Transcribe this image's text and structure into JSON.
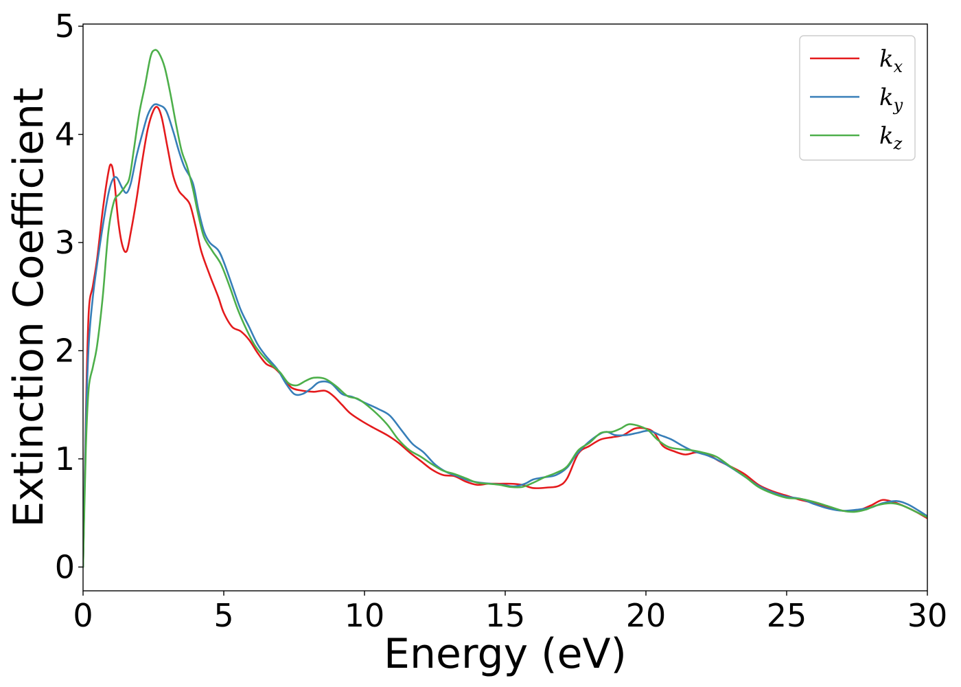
{
  "chart_data": {
    "type": "line",
    "title": "",
    "xlabel": "Energy (eV)",
    "ylabel": "Extinction Coefficient",
    "xlim": [
      0,
      30
    ],
    "ylim": [
      -0.22,
      5.02
    ],
    "xticks": [
      0,
      5,
      10,
      15,
      20,
      25,
      30
    ],
    "yticks": [
      0,
      1,
      2,
      3,
      4,
      5
    ],
    "grid": false,
    "legend_position": "top-right",
    "series": [
      {
        "name": "k",
        "subscript": "x",
        "color": "#e41a1c",
        "points": [
          [
            0,
            0
          ],
          [
            0.1,
            1.4
          ],
          [
            0.2,
            2.35
          ],
          [
            0.35,
            2.6
          ],
          [
            0.5,
            2.85
          ],
          [
            0.7,
            3.3
          ],
          [
            0.9,
            3.65
          ],
          [
            1.0,
            3.72
          ],
          [
            1.1,
            3.6
          ],
          [
            1.25,
            3.2
          ],
          [
            1.4,
            2.97
          ],
          [
            1.55,
            2.92
          ],
          [
            1.7,
            3.1
          ],
          [
            1.9,
            3.4
          ],
          [
            2.1,
            3.75
          ],
          [
            2.3,
            4.05
          ],
          [
            2.5,
            4.22
          ],
          [
            2.65,
            4.25
          ],
          [
            2.8,
            4.15
          ],
          [
            3.0,
            3.88
          ],
          [
            3.2,
            3.62
          ],
          [
            3.4,
            3.48
          ],
          [
            3.6,
            3.42
          ],
          [
            3.8,
            3.35
          ],
          [
            4.0,
            3.15
          ],
          [
            4.2,
            2.92
          ],
          [
            4.5,
            2.7
          ],
          [
            4.8,
            2.5
          ],
          [
            5.0,
            2.35
          ],
          [
            5.3,
            2.22
          ],
          [
            5.6,
            2.18
          ],
          [
            5.9,
            2.1
          ],
          [
            6.2,
            1.98
          ],
          [
            6.5,
            1.88
          ],
          [
            6.8,
            1.84
          ],
          [
            7.1,
            1.76
          ],
          [
            7.4,
            1.66
          ],
          [
            7.8,
            1.63
          ],
          [
            8.2,
            1.62
          ],
          [
            8.6,
            1.63
          ],
          [
            8.9,
            1.58
          ],
          [
            9.2,
            1.5
          ],
          [
            9.5,
            1.42
          ],
          [
            9.9,
            1.35
          ],
          [
            10.3,
            1.29
          ],
          [
            10.8,
            1.22
          ],
          [
            11.2,
            1.15
          ],
          [
            11.6,
            1.06
          ],
          [
            12.0,
            0.98
          ],
          [
            12.4,
            0.9
          ],
          [
            12.8,
            0.85
          ],
          [
            13.2,
            0.84
          ],
          [
            13.6,
            0.79
          ],
          [
            14.0,
            0.76
          ],
          [
            14.4,
            0.77
          ],
          [
            14.8,
            0.77
          ],
          [
            15.2,
            0.77
          ],
          [
            15.6,
            0.76
          ],
          [
            16.0,
            0.73
          ],
          [
            16.5,
            0.735
          ],
          [
            16.9,
            0.75
          ],
          [
            17.2,
            0.82
          ],
          [
            17.6,
            1.05
          ],
          [
            18.0,
            1.12
          ],
          [
            18.4,
            1.18
          ],
          [
            18.8,
            1.2
          ],
          [
            19.2,
            1.22
          ],
          [
            19.6,
            1.28
          ],
          [
            20.0,
            1.28
          ],
          [
            20.3,
            1.24
          ],
          [
            20.6,
            1.12
          ],
          [
            21.0,
            1.07
          ],
          [
            21.4,
            1.04
          ],
          [
            21.8,
            1.06
          ],
          [
            22.2,
            1.04
          ],
          [
            22.6,
            0.98
          ],
          [
            23.0,
            0.93
          ],
          [
            23.5,
            0.86
          ],
          [
            24.0,
            0.76
          ],
          [
            24.5,
            0.7
          ],
          [
            25.0,
            0.66
          ],
          [
            25.5,
            0.62
          ],
          [
            26.0,
            0.59
          ],
          [
            26.5,
            0.55
          ],
          [
            27.0,
            0.52
          ],
          [
            27.5,
            0.52
          ],
          [
            28.0,
            0.57
          ],
          [
            28.4,
            0.62
          ],
          [
            28.8,
            0.6
          ],
          [
            29.2,
            0.56
          ],
          [
            29.6,
            0.51
          ],
          [
            30.0,
            0.45
          ]
        ]
      },
      {
        "name": "k",
        "subscript": "y",
        "color": "#377eb8",
        "points": [
          [
            0,
            0
          ],
          [
            0.1,
            1.3
          ],
          [
            0.2,
            2.05
          ],
          [
            0.35,
            2.5
          ],
          [
            0.5,
            2.8
          ],
          [
            0.7,
            3.15
          ],
          [
            0.9,
            3.45
          ],
          [
            1.05,
            3.58
          ],
          [
            1.2,
            3.6
          ],
          [
            1.4,
            3.5
          ],
          [
            1.55,
            3.46
          ],
          [
            1.7,
            3.55
          ],
          [
            1.9,
            3.8
          ],
          [
            2.1,
            4.0
          ],
          [
            2.3,
            4.18
          ],
          [
            2.5,
            4.27
          ],
          [
            2.7,
            4.27
          ],
          [
            2.95,
            4.22
          ],
          [
            3.2,
            4.03
          ],
          [
            3.4,
            3.85
          ],
          [
            3.6,
            3.7
          ],
          [
            3.9,
            3.55
          ],
          [
            4.1,
            3.3
          ],
          [
            4.3,
            3.1
          ],
          [
            4.5,
            3.0
          ],
          [
            4.8,
            2.93
          ],
          [
            5.0,
            2.82
          ],
          [
            5.3,
            2.6
          ],
          [
            5.6,
            2.38
          ],
          [
            5.9,
            2.22
          ],
          [
            6.2,
            2.06
          ],
          [
            6.5,
            1.95
          ],
          [
            6.9,
            1.83
          ],
          [
            7.2,
            1.7
          ],
          [
            7.5,
            1.6
          ],
          [
            7.8,
            1.6
          ],
          [
            8.1,
            1.65
          ],
          [
            8.4,
            1.71
          ],
          [
            8.8,
            1.7
          ],
          [
            9.2,
            1.6
          ],
          [
            9.6,
            1.57
          ],
          [
            10.0,
            1.52
          ],
          [
            10.5,
            1.46
          ],
          [
            10.9,
            1.4
          ],
          [
            11.3,
            1.27
          ],
          [
            11.7,
            1.14
          ],
          [
            12.1,
            1.06
          ],
          [
            12.5,
            0.95
          ],
          [
            12.9,
            0.88
          ],
          [
            13.3,
            0.84
          ],
          [
            13.7,
            0.8
          ],
          [
            14.1,
            0.78
          ],
          [
            14.5,
            0.77
          ],
          [
            14.9,
            0.76
          ],
          [
            15.3,
            0.745
          ],
          [
            15.7,
            0.77
          ],
          [
            16.0,
            0.81
          ],
          [
            16.4,
            0.83
          ],
          [
            16.8,
            0.85
          ],
          [
            17.2,
            0.92
          ],
          [
            17.5,
            1.03
          ],
          [
            17.9,
            1.14
          ],
          [
            18.3,
            1.22
          ],
          [
            18.6,
            1.25
          ],
          [
            18.9,
            1.22
          ],
          [
            19.3,
            1.22
          ],
          [
            19.7,
            1.24
          ],
          [
            20.1,
            1.26
          ],
          [
            20.5,
            1.22
          ],
          [
            20.9,
            1.18
          ],
          [
            21.3,
            1.12
          ],
          [
            21.7,
            1.07
          ],
          [
            22.2,
            1.03
          ],
          [
            22.7,
            0.97
          ],
          [
            23.2,
            0.89
          ],
          [
            23.6,
            0.82
          ],
          [
            24.0,
            0.75
          ],
          [
            24.5,
            0.69
          ],
          [
            25.0,
            0.65
          ],
          [
            25.5,
            0.63
          ],
          [
            26.0,
            0.58
          ],
          [
            26.5,
            0.54
          ],
          [
            27.0,
            0.52
          ],
          [
            27.5,
            0.53
          ],
          [
            28.0,
            0.55
          ],
          [
            28.4,
            0.59
          ],
          [
            28.9,
            0.61
          ],
          [
            29.3,
            0.58
          ],
          [
            29.7,
            0.52
          ],
          [
            30.0,
            0.47
          ]
        ]
      },
      {
        "name": "k",
        "subscript": "z",
        "color": "#4daf4a",
        "points": [
          [
            0,
            0
          ],
          [
            0.1,
            1.1
          ],
          [
            0.2,
            1.65
          ],
          [
            0.35,
            1.85
          ],
          [
            0.5,
            2.05
          ],
          [
            0.7,
            2.5
          ],
          [
            0.9,
            3.1
          ],
          [
            1.1,
            3.38
          ],
          [
            1.3,
            3.45
          ],
          [
            1.5,
            3.52
          ],
          [
            1.65,
            3.6
          ],
          [
            1.8,
            3.85
          ],
          [
            2.0,
            4.2
          ],
          [
            2.2,
            4.45
          ],
          [
            2.4,
            4.72
          ],
          [
            2.55,
            4.78
          ],
          [
            2.7,
            4.75
          ],
          [
            2.9,
            4.62
          ],
          [
            3.1,
            4.38
          ],
          [
            3.3,
            4.1
          ],
          [
            3.5,
            3.85
          ],
          [
            3.7,
            3.7
          ],
          [
            3.9,
            3.5
          ],
          [
            4.1,
            3.25
          ],
          [
            4.3,
            3.05
          ],
          [
            4.6,
            2.92
          ],
          [
            4.9,
            2.8
          ],
          [
            5.2,
            2.6
          ],
          [
            5.5,
            2.38
          ],
          [
            5.8,
            2.2
          ],
          [
            6.1,
            2.05
          ],
          [
            6.4,
            1.95
          ],
          [
            6.7,
            1.87
          ],
          [
            7.0,
            1.8
          ],
          [
            7.3,
            1.7
          ],
          [
            7.6,
            1.68
          ],
          [
            7.9,
            1.72
          ],
          [
            8.2,
            1.75
          ],
          [
            8.6,
            1.74
          ],
          [
            9.0,
            1.67
          ],
          [
            9.4,
            1.58
          ],
          [
            9.8,
            1.55
          ],
          [
            10.3,
            1.45
          ],
          [
            10.8,
            1.32
          ],
          [
            11.2,
            1.18
          ],
          [
            11.6,
            1.08
          ],
          [
            12.0,
            1.02
          ],
          [
            12.4,
            0.95
          ],
          [
            12.8,
            0.89
          ],
          [
            13.2,
            0.86
          ],
          [
            13.6,
            0.82
          ],
          [
            14.0,
            0.78
          ],
          [
            14.4,
            0.77
          ],
          [
            14.8,
            0.76
          ],
          [
            15.2,
            0.74
          ],
          [
            15.6,
            0.74
          ],
          [
            16.0,
            0.78
          ],
          [
            16.4,
            0.83
          ],
          [
            16.8,
            0.87
          ],
          [
            17.2,
            0.93
          ],
          [
            17.6,
            1.08
          ],
          [
            18.0,
            1.15
          ],
          [
            18.4,
            1.24
          ],
          [
            18.8,
            1.25
          ],
          [
            19.1,
            1.28
          ],
          [
            19.4,
            1.32
          ],
          [
            19.8,
            1.3
          ],
          [
            20.1,
            1.26
          ],
          [
            20.4,
            1.18
          ],
          [
            20.8,
            1.11
          ],
          [
            21.2,
            1.09
          ],
          [
            21.6,
            1.08
          ],
          [
            22.0,
            1.06
          ],
          [
            22.5,
            1.02
          ],
          [
            23.0,
            0.93
          ],
          [
            23.5,
            0.84
          ],
          [
            24.0,
            0.74
          ],
          [
            24.5,
            0.68
          ],
          [
            25.0,
            0.64
          ],
          [
            25.5,
            0.63
          ],
          [
            26.0,
            0.6
          ],
          [
            26.5,
            0.56
          ],
          [
            27.0,
            0.52
          ],
          [
            27.4,
            0.51
          ],
          [
            27.8,
            0.53
          ],
          [
            28.2,
            0.57
          ],
          [
            28.7,
            0.59
          ],
          [
            29.1,
            0.57
          ],
          [
            29.6,
            0.51
          ],
          [
            30.0,
            0.46
          ]
        ]
      }
    ]
  }
}
